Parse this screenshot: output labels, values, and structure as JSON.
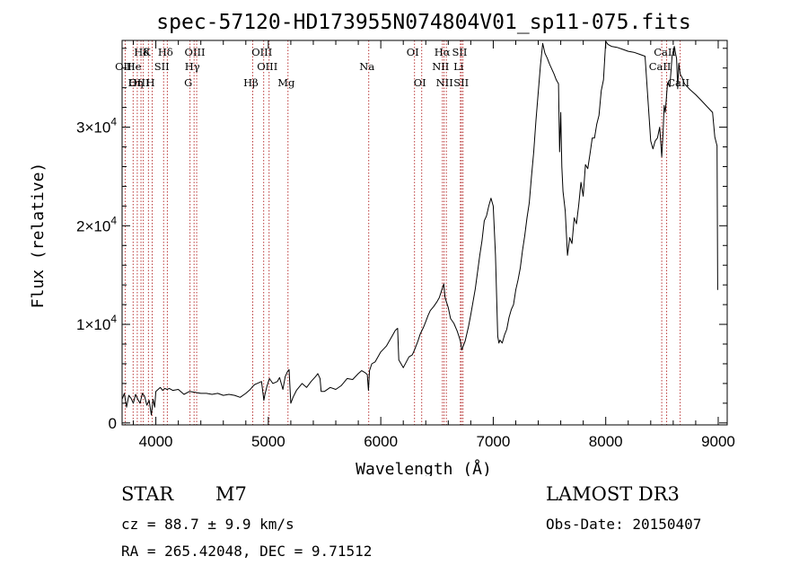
{
  "chart_data": {
    "type": "line",
    "title": "spec-57120-HD173955N074804V01_sp11-075.fits",
    "xlabel": "Wavelength (Å)",
    "ylabel": "Flux (relative)",
    "xlim": [
      3700,
      9080
    ],
    "ylim": [
      -200,
      38800
    ],
    "x_ticks": [
      4000,
      5000,
      6000,
      7000,
      8000,
      9000
    ],
    "x_tick_labels": [
      "4000",
      "5000",
      "6000",
      "7000",
      "8000",
      "9000"
    ],
    "y_ticks": [
      0,
      10000,
      20000,
      30000
    ],
    "y_tick_labels": [
      {
        "mant": "0",
        "exp": ""
      },
      {
        "mant": "1×10",
        "exp": "4"
      },
      {
        "mant": "2×10",
        "exp": "4"
      },
      {
        "mant": "3×10",
        "exp": "4"
      }
    ],
    "series": [
      {
        "name": "spectrum",
        "x": [
          3700,
          3720,
          3740,
          3760,
          3780,
          3800,
          3820,
          3840,
          3860,
          3880,
          3900,
          3920,
          3940,
          3960,
          3975,
          3990,
          4000,
          4020,
          4040,
          4060,
          4080,
          4100,
          4120,
          4150,
          4200,
          4250,
          4300,
          4350,
          4400,
          4450,
          4500,
          4550,
          4600,
          4650,
          4700,
          4750,
          4800,
          4840,
          4861,
          4880,
          4900,
          4940,
          4960,
          4970,
          4990,
          5010,
          5040,
          5080,
          5100,
          5130,
          5150,
          5170,
          5185,
          5200,
          5220,
          5250,
          5300,
          5340,
          5380,
          5420,
          5440,
          5460,
          5470,
          5500,
          5550,
          5600,
          5650,
          5700,
          5750,
          5800,
          5830,
          5860,
          5880,
          5890,
          5900,
          5920,
          5950,
          6000,
          6050,
          6100,
          6130,
          6150,
          6160,
          6200,
          6250,
          6280,
          6300,
          6330,
          6350,
          6380,
          6400,
          6420,
          6440,
          6470,
          6500,
          6520,
          6540,
          6560,
          6570,
          6580,
          6600,
          6620,
          6650,
          6680,
          6700,
          6710,
          6720,
          6750,
          6780,
          6800,
          6820,
          6840,
          6860,
          6880,
          6900,
          6920,
          6940,
          6960,
          6980,
          7000,
          7020,
          7040,
          7050,
          7060,
          7080,
          7100,
          7120,
          7140,
          7160,
          7180,
          7200,
          7220,
          7240,
          7260,
          7280,
          7300,
          7320,
          7340,
          7360,
          7380,
          7400,
          7420,
          7440,
          7460,
          7480,
          7500,
          7520,
          7540,
          7560,
          7580,
          7590,
          7600,
          7610,
          7620,
          7640,
          7660,
          7680,
          7700,
          7720,
          7740,
          7760,
          7780,
          7800,
          7820,
          7840,
          7860,
          7880,
          7900,
          7920,
          7940,
          7960,
          7980,
          8000,
          8020,
          8050,
          8100,
          8150,
          8200,
          8250,
          8300,
          8350,
          8400,
          8420,
          8440,
          8460,
          8480,
          8498,
          8510,
          8520,
          8530,
          8542,
          8550,
          8570,
          8590,
          8610,
          8620,
          8630,
          8640,
          8650,
          8662,
          8680,
          8700,
          8750,
          8800,
          8850,
          8900,
          8950,
          8970,
          8990,
          8995
        ],
        "y": [
          2400,
          3000,
          1600,
          2800,
          2500,
          2000,
          2900,
          2400,
          2000,
          3000,
          2700,
          1800,
          2300,
          800,
          2400,
          1600,
          3200,
          3400,
          3600,
          3300,
          3500,
          3400,
          3500,
          3300,
          3400,
          2900,
          3200,
          3100,
          3000,
          3000,
          2900,
          3000,
          2800,
          2900,
          2800,
          2600,
          3000,
          3400,
          3700,
          3900,
          4000,
          4200,
          2300,
          2900,
          3800,
          4500,
          4000,
          4200,
          4600,
          3400,
          4700,
          5200,
          5400,
          2000,
          2600,
          3300,
          4000,
          3600,
          4200,
          4700,
          5000,
          4500,
          3200,
          3200,
          3600,
          3400,
          3800,
          4500,
          4400,
          5000,
          5300,
          5100,
          4900,
          3300,
          5300,
          6000,
          6200,
          7200,
          7800,
          8800,
          9400,
          9600,
          6400,
          5600,
          6700,
          6900,
          7400,
          8300,
          9000,
          9700,
          10300,
          10900,
          11400,
          11800,
          12300,
          12700,
          13400,
          14100,
          12800,
          12400,
          11700,
          10600,
          10100,
          9300,
          8600,
          8200,
          7400,
          8300,
          9800,
          11000,
          12300,
          13600,
          15300,
          17000,
          18500,
          20500,
          21000,
          22000,
          22800,
          22000,
          17000,
          8800,
          8100,
          8400,
          8100,
          8900,
          9500,
          10700,
          11500,
          12000,
          13500,
          14500,
          15700,
          17500,
          19000,
          20800,
          22300,
          25000,
          27500,
          30700,
          33500,
          36300,
          38500,
          37500,
          37000,
          36400,
          35900,
          35400,
          34800,
          34400,
          27500,
          31500,
          26000,
          23500,
          21500,
          17000,
          18800,
          18200,
          20800,
          20200,
          22100,
          24400,
          23000,
          26200,
          25800,
          27300,
          28900,
          28900,
          30300,
          31200,
          33700,
          34800,
          38700,
          38400,
          38200,
          38100,
          37900,
          37700,
          37600,
          37400,
          37200,
          28600,
          27800,
          28600,
          28900,
          30000,
          27000,
          29500,
          32200,
          31500,
          33400,
          34500,
          34100,
          37200,
          38200,
          37500,
          37000,
          33900,
          36500,
          35400,
          35000,
          34400,
          33800,
          33300,
          32700,
          32100,
          31500,
          29000,
          28100,
          13500
        ]
      }
    ],
    "emission_lines": [
      {
        "label": "Hδ",
        "x": 3889,
        "row": 1
      },
      {
        "label": "K",
        "x": 3934,
        "row": 1
      },
      {
        "label": "Hδ",
        "x": 4102,
        "row": 1
      },
      {
        "label": "OIII",
        "x": 4363,
        "row": 1
      },
      {
        "label": "OIII",
        "x": 4959,
        "row": 1
      },
      {
        "label": "OI",
        "x": 6300,
        "row": 1
      },
      {
        "label": "Hα",
        "x": 6563,
        "row": 1
      },
      {
        "label": "SII",
        "x": 6717,
        "row": 1
      },
      {
        "label": "CaII",
        "x": 8542,
        "row": 1
      },
      {
        "label": "OII",
        "x": 3727,
        "row": 2
      },
      {
        "label": "He",
        "x": 3820,
        "row": 2
      },
      {
        "label": "SII",
        "x": 4069,
        "row": 2
      },
      {
        "label": "Hγ",
        "x": 4340,
        "row": 2
      },
      {
        "label": "OIII",
        "x": 5007,
        "row": 2
      },
      {
        "label": "Na",
        "x": 5893,
        "row": 2
      },
      {
        "label": "NII",
        "x": 6548,
        "row": 2
      },
      {
        "label": "Li",
        "x": 6708,
        "row": 2
      },
      {
        "label": "CaII",
        "x": 8498,
        "row": 2
      },
      {
        "label": "OIII",
        "x": 3868,
        "row": 3
      },
      {
        "label": "Hη",
        "x": 3835,
        "row": 3
      },
      {
        "label": "H",
        "x": 3968,
        "row": 3
      },
      {
        "label": "G",
        "x": 4304,
        "row": 3
      },
      {
        "label": "Hβ",
        "x": 4861,
        "row": 3
      },
      {
        "label": "Mg",
        "x": 5175,
        "row": 3
      },
      {
        "label": "OI",
        "x": 6364,
        "row": 3
      },
      {
        "label": "NII",
        "x": 6583,
        "row": 3
      },
      {
        "label": "SII",
        "x": 6731,
        "row": 3
      },
      {
        "label": "CaII",
        "x": 8662,
        "row": 3
      }
    ],
    "marker_lines_x": [
      3727,
      3798,
      3835,
      3868,
      3889,
      3934,
      3968,
      4069,
      4102,
      4304,
      4340,
      4363,
      4861,
      4959,
      5007,
      5175,
      5893,
      6300,
      6364,
      6548,
      6563,
      6583,
      6708,
      6717,
      6731,
      8498,
      8542,
      8662
    ]
  },
  "info": {
    "object_class": "STAR",
    "subclass": "M7",
    "survey": "LAMOST DR3",
    "redshift": "cz = 88.7 ± 9.9 km/s",
    "obs_date": "Obs-Date: 20150407",
    "coords": "RA = 265.42048, DEC =   9.71512"
  },
  "colors": {
    "marker_line": "#b22222",
    "spectrum": "#000000",
    "axis": "#000000"
  }
}
